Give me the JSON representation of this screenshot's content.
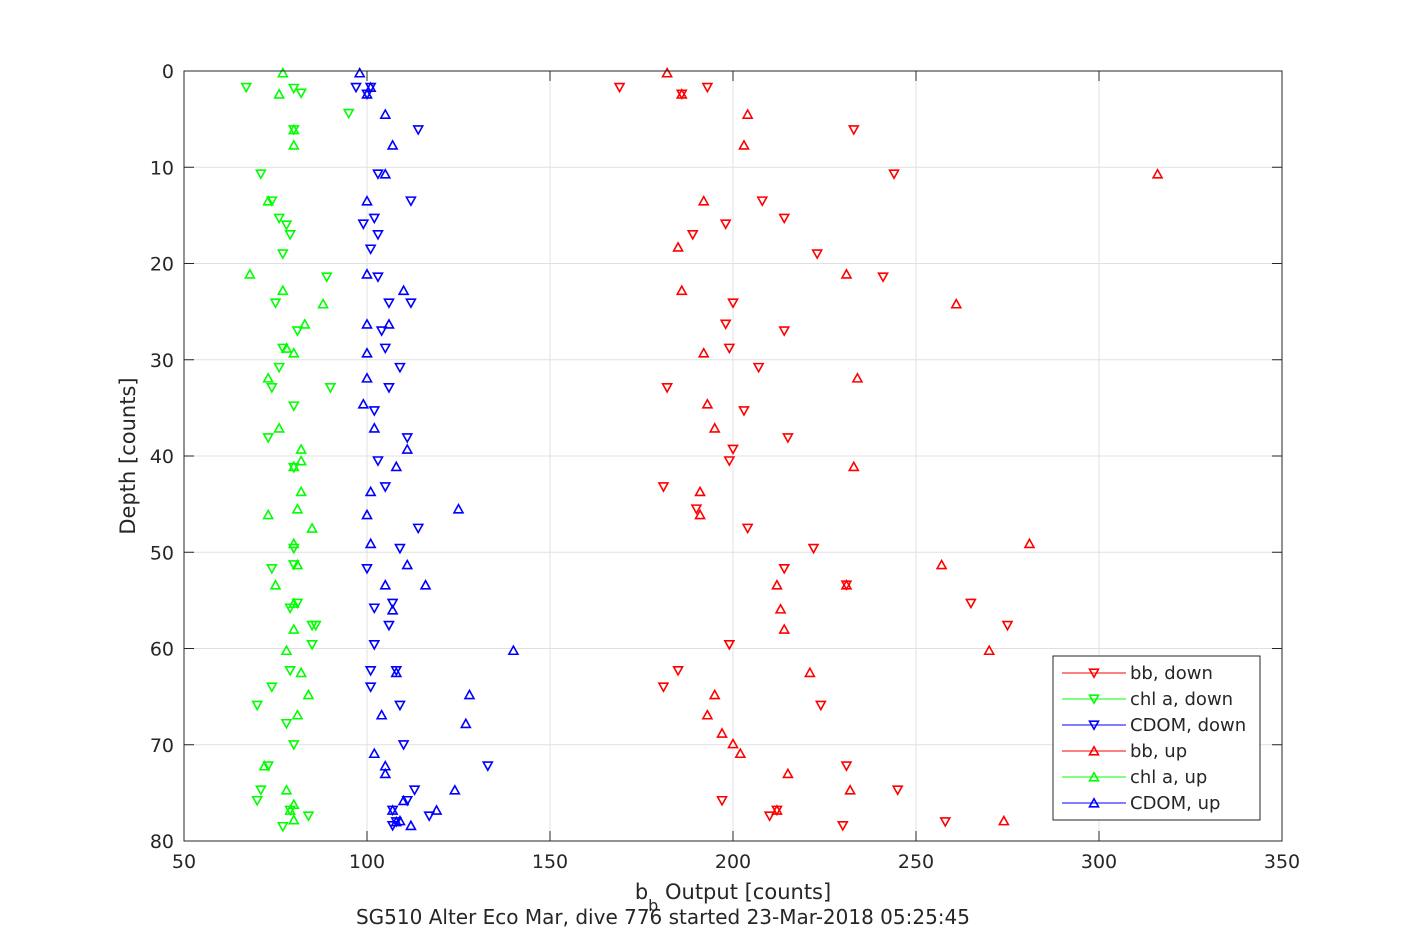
{
  "chart_data": {
    "type": "scatter",
    "title": "",
    "xlabel": "b",
    "xlabel_subscript": "b",
    "xlabel_suffix": " Output [counts]",
    "ylabel": "Depth [counts]",
    "caption": "SG510 Alter Eco Mar, dive 776 started 23-Mar-2018 05:25:45",
    "xlim": [
      50,
      350
    ],
    "ylim": [
      0,
      80
    ],
    "y_reversed": true,
    "xticks": [
      "50",
      "100",
      "150",
      "200",
      "250",
      "300",
      "350"
    ],
    "yticks": [
      "0",
      "10",
      "20",
      "30",
      "40",
      "50",
      "60",
      "70",
      "80"
    ],
    "grid": true,
    "legend_position": "lower-right",
    "series": [
      {
        "name": "bb, down",
        "color": "#ff0000",
        "marker": "triangle-down",
        "x": [
          169,
          193,
          186,
          233,
          244,
          208,
          198,
          214,
          189,
          223,
          241,
          200,
          198,
          214,
          199,
          207,
          182,
          203,
          215,
          200,
          199,
          181,
          190,
          204,
          222,
          214,
          231,
          265,
          275,
          199,
          185,
          181,
          224,
          231,
          245,
          197,
          212,
          210,
          258,
          230
        ],
        "y": [
          1.7,
          1.7,
          2.4,
          6.1,
          10.7,
          13.5,
          15.9,
          15.3,
          17.0,
          19.0,
          21.4,
          24.1,
          26.3,
          27.0,
          28.8,
          30.8,
          32.9,
          35.3,
          38.1,
          39.3,
          40.5,
          43.2,
          45.5,
          47.5,
          49.6,
          51.7,
          53.4,
          55.3,
          57.6,
          59.6,
          62.3,
          64.0,
          65.9,
          72.2,
          74.7,
          75.8,
          76.8,
          77.4,
          78.0,
          78.4
        ]
      },
      {
        "name": "chl a, down",
        "color": "#00ff00",
        "marker": "triangle-down",
        "x": [
          67,
          80,
          82,
          95,
          80,
          71,
          74,
          76,
          78,
          79,
          77,
          89,
          75,
          81,
          77,
          76,
          74,
          90,
          80,
          73,
          80,
          80,
          80,
          85,
          74,
          81,
          79,
          86,
          85,
          79,
          74,
          70,
          78,
          80,
          73,
          71,
          70,
          79,
          84,
          77
        ],
        "y": [
          1.7,
          1.8,
          2.3,
          4.4,
          6.1,
          10.7,
          13.5,
          15.3,
          16.0,
          17.0,
          19.0,
          21.4,
          24.1,
          27.0,
          28.8,
          30.8,
          32.9,
          32.9,
          34.8,
          38.1,
          41.2,
          49.6,
          51.3,
          57.6,
          51.7,
          55.3,
          55.8,
          57.6,
          59.6,
          62.3,
          64.0,
          65.9,
          67.8,
          70.0,
          72.2,
          74.7,
          75.8,
          76.8,
          77.4,
          78.5
        ]
      },
      {
        "name": "CDOM, down",
        "color": "#0000ff",
        "marker": "triangle-down",
        "x": [
          97,
          100,
          101,
          114,
          103,
          112,
          99,
          102,
          103,
          101,
          103,
          112,
          106,
          104,
          105,
          109,
          106,
          102,
          111,
          103,
          105,
          114,
          109,
          100,
          107,
          102,
          106,
          102,
          108,
          101,
          101,
          109,
          110,
          133,
          113,
          111,
          107,
          117,
          108,
          107
        ],
        "y": [
          1.7,
          2.4,
          1.7,
          6.1,
          10.7,
          13.5,
          15.9,
          15.3,
          17.0,
          18.5,
          21.4,
          24.1,
          24.1,
          27.0,
          28.8,
          30.8,
          32.9,
          35.3,
          38.1,
          40.5,
          43.2,
          47.5,
          49.6,
          51.7,
          55.3,
          55.8,
          57.6,
          59.6,
          62.3,
          62.3,
          64.0,
          65.9,
          70.0,
          72.2,
          74.7,
          75.8,
          76.8,
          77.4,
          78.0,
          78.4
        ]
      },
      {
        "name": "bb, up",
        "color": "#ff0000",
        "marker": "triangle-up",
        "x": [
          182,
          186,
          204,
          203,
          316,
          192,
          185,
          231,
          261,
          186,
          192,
          234,
          193,
          195,
          233,
          191,
          191,
          281,
          257,
          212,
          231,
          213,
          214,
          270,
          221,
          195,
          193,
          197,
          200,
          202,
          215,
          232,
          212,
          274
        ],
        "y": [
          0.2,
          2.4,
          4.5,
          7.7,
          10.7,
          13.5,
          18.3,
          21.1,
          24.2,
          22.8,
          29.3,
          31.9,
          34.6,
          37.1,
          41.1,
          43.7,
          46.1,
          49.1,
          51.3,
          53.4,
          53.4,
          55.9,
          58.0,
          60.2,
          62.5,
          64.8,
          66.9,
          68.8,
          69.9,
          70.9,
          73.0,
          74.7,
          76.8,
          77.9
        ]
      },
      {
        "name": "chl a, up",
        "color": "#00ff00",
        "marker": "triangle-up",
        "x": [
          77,
          76,
          80,
          80,
          73,
          68,
          77,
          88,
          83,
          78,
          80,
          73,
          76,
          82,
          82,
          80,
          82,
          81,
          85,
          73,
          80,
          81,
          75,
          80,
          80,
          78,
          82,
          84,
          81,
          72,
          78,
          80,
          79,
          80
        ],
        "y": [
          0.2,
          2.4,
          6.1,
          7.7,
          13.5,
          21.1,
          22.8,
          24.2,
          26.3,
          28.8,
          29.3,
          31.9,
          37.1,
          39.3,
          40.5,
          41.1,
          43.7,
          45.5,
          47.5,
          46.1,
          49.1,
          51.3,
          53.4,
          55.3,
          58.0,
          60.2,
          62.5,
          64.8,
          66.9,
          72.2,
          74.7,
          76.2,
          76.8,
          77.8
        ]
      },
      {
        "name": "CDOM, up",
        "color": "#0000ff",
        "marker": "triangle-up",
        "x": [
          98,
          101,
          100,
          105,
          107,
          105,
          100,
          100,
          110,
          100,
          106,
          100,
          100,
          99,
          102,
          111,
          108,
          101,
          100,
          125,
          101,
          111,
          105,
          116,
          107,
          140,
          108,
          128,
          127,
          104,
          105,
          102,
          105,
          124,
          110,
          107,
          108,
          119,
          112,
          109
        ],
        "y": [
          0.2,
          1.7,
          2.4,
          4.5,
          7.7,
          10.7,
          13.5,
          21.1,
          22.8,
          26.3,
          26.3,
          29.3,
          31.9,
          34.6,
          37.1,
          39.3,
          41.1,
          43.7,
          46.1,
          45.5,
          49.1,
          51.3,
          53.4,
          53.4,
          56.0,
          60.2,
          62.5,
          64.8,
          67.8,
          66.9,
          73.0,
          70.9,
          72.2,
          74.7,
          75.8,
          76.8,
          78.0,
          76.8,
          78.4,
          77.9
        ]
      }
    ]
  }
}
